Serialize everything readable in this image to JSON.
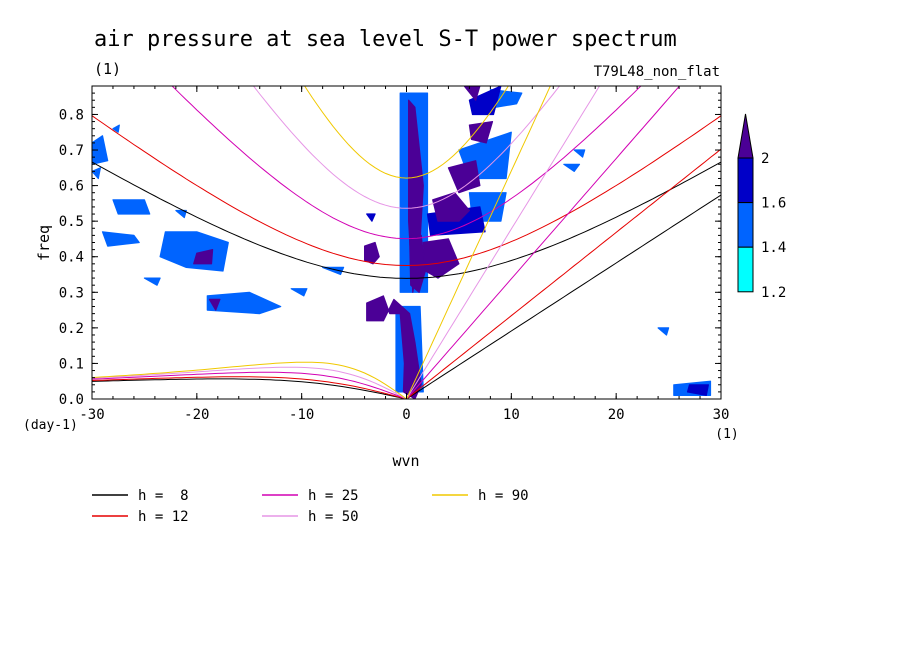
{
  "chart_data": {
    "type": "heatmap",
    "title": "air pressure at sea level S-T power spectrum",
    "subtitle_left": "(1)",
    "subtitle_right": "T79L48_non_flat",
    "xlabel": "wvn",
    "ylabel": "freq",
    "x_unit": "(1)",
    "y_unit": "(day-1)",
    "xlim": [
      -30,
      30
    ],
    "ylim": [
      0,
      0.88
    ],
    "x_ticks": [
      -30,
      -20,
      -10,
      0,
      10,
      20,
      30
    ],
    "x_tick_labels": [
      "-30",
      "-20",
      "-10",
      "0",
      "10",
      "20",
      "30"
    ],
    "y_ticks": [
      0.0,
      0.1,
      0.2,
      0.3,
      0.4,
      0.5,
      0.6,
      0.7,
      0.8
    ],
    "y_tick_labels": [
      "0.0",
      "0.1",
      "0.2",
      "0.3",
      "0.4",
      "0.5",
      "0.6",
      "0.7",
      "0.8"
    ],
    "colorbar": {
      "levels": [
        1.2,
        1.4,
        1.6,
        2
      ],
      "labels": [
        "1.2",
        "1.4",
        "1.6",
        "2"
      ],
      "colors": [
        "#00ffff",
        "#0064ff",
        "#0000c8",
        "#4b0096"
      ]
    },
    "dispersion_curves": [
      {
        "name": "h =  8",
        "h": 8,
        "color": "#000000"
      },
      {
        "name": "h = 12",
        "h": 12,
        "color": "#e60000"
      },
      {
        "name": "h = 25",
        "h": 25,
        "color": "#d200b4"
      },
      {
        "name": "h = 50",
        "h": 50,
        "color": "#e696e6"
      },
      {
        "name": "h = 90",
        "h": 90,
        "color": "#f0c800"
      }
    ],
    "contour_regions": [
      {
        "level": 2,
        "points": [
          [
            0.2,
            0.84
          ],
          [
            0.8,
            0.82
          ],
          [
            1.6,
            0.6
          ],
          [
            1.2,
            0.4
          ],
          [
            0.6,
            0.3
          ],
          [
            0.2,
            0.5
          ]
        ]
      },
      {
        "level": 2,
        "points": [
          [
            0.3,
            0.46
          ],
          [
            1.4,
            0.46
          ],
          [
            1.8,
            0.36
          ],
          [
            1.2,
            0.3
          ],
          [
            0.4,
            0.32
          ]
        ]
      },
      {
        "level": 2,
        "points": [
          [
            -3.8,
            0.27
          ],
          [
            -2.2,
            0.29
          ],
          [
            -1.6,
            0.24
          ],
          [
            -0.6,
            0.24
          ],
          [
            -0.2,
            0.1
          ],
          [
            -0.3,
            0.02
          ],
          [
            0.8,
            0.0
          ],
          [
            1.4,
            0.04
          ],
          [
            0.8,
            0.16
          ],
          [
            0.3,
            0.24
          ],
          [
            -1.2,
            0.28
          ],
          [
            -2.2,
            0.22
          ],
          [
            -3.8,
            0.22
          ]
        ]
      },
      {
        "level": 2,
        "points": [
          [
            -4,
            0.43
          ],
          [
            -3,
            0.44
          ],
          [
            -2.6,
            0.4
          ],
          [
            -3.2,
            0.38
          ],
          [
            -4,
            0.39
          ]
        ]
      },
      {
        "level": 2,
        "points": [
          [
            2.5,
            0.56
          ],
          [
            4.6,
            0.58
          ],
          [
            6,
            0.53
          ],
          [
            5,
            0.5
          ],
          [
            3,
            0.5
          ]
        ]
      },
      {
        "level": 2,
        "points": [
          [
            4,
            0.65
          ],
          [
            6.6,
            0.67
          ],
          [
            7,
            0.6
          ],
          [
            5,
            0.58
          ]
        ]
      },
      {
        "level": 2,
        "points": [
          [
            1.6,
            0.44
          ],
          [
            4,
            0.45
          ],
          [
            5,
            0.38
          ],
          [
            3,
            0.34
          ],
          [
            1.8,
            0.36
          ]
        ]
      },
      {
        "level": 2,
        "points": [
          [
            6,
            0.77
          ],
          [
            8.2,
            0.78
          ],
          [
            7.6,
            0.72
          ],
          [
            6.2,
            0.73
          ]
        ]
      },
      {
        "level": 2,
        "points": [
          [
            5.5,
            0.88
          ],
          [
            7,
            0.88
          ],
          [
            6.6,
            0.84
          ]
        ]
      },
      {
        "level": 2,
        "points": [
          [
            -20,
            0.41
          ],
          [
            -18.5,
            0.42
          ],
          [
            -18.6,
            0.38
          ],
          [
            -20.3,
            0.38
          ]
        ]
      },
      {
        "level": 2,
        "points": [
          [
            -18.8,
            0.28
          ],
          [
            -17.8,
            0.28
          ],
          [
            -18.2,
            0.25
          ]
        ]
      },
      {
        "level": 1.6,
        "points": [
          [
            2,
            0.52
          ],
          [
            7,
            0.54
          ],
          [
            7.5,
            0.47
          ],
          [
            2.3,
            0.46
          ]
        ]
      },
      {
        "level": 1.6,
        "points": [
          [
            6,
            0.84
          ],
          [
            9,
            0.88
          ],
          [
            8.3,
            0.8
          ],
          [
            6.3,
            0.8
          ]
        ]
      },
      {
        "level": 1.6,
        "points": [
          [
            27,
            0.04
          ],
          [
            28.8,
            0.04
          ],
          [
            28.6,
            0.01
          ],
          [
            26.8,
            0.02
          ]
        ]
      },
      {
        "level": 1.6,
        "points": [
          [
            -3.8,
            0.52
          ],
          [
            -3,
            0.52
          ],
          [
            -3.3,
            0.5
          ]
        ]
      },
      {
        "level": 1.4,
        "points": [
          [
            -28,
            0.56
          ],
          [
            -25,
            0.56
          ],
          [
            -24.5,
            0.52
          ],
          [
            -27.5,
            0.52
          ]
        ]
      },
      {
        "level": 1.4,
        "points": [
          [
            -23,
            0.47
          ],
          [
            -20,
            0.47
          ],
          [
            -17,
            0.44
          ],
          [
            -17.5,
            0.36
          ],
          [
            -21,
            0.37
          ],
          [
            -23.5,
            0.4
          ]
        ]
      },
      {
        "level": 1.4,
        "points": [
          [
            -29,
            0.47
          ],
          [
            -26,
            0.46
          ],
          [
            -25.5,
            0.44
          ],
          [
            -28.5,
            0.43
          ]
        ]
      },
      {
        "level": 1.4,
        "points": [
          [
            -19,
            0.29
          ],
          [
            -15,
            0.3
          ],
          [
            -12,
            0.26
          ],
          [
            -14,
            0.24
          ],
          [
            -19,
            0.25
          ]
        ]
      },
      {
        "level": 1.4,
        "points": [
          [
            -30,
            0.72
          ],
          [
            -29,
            0.74
          ],
          [
            -28.5,
            0.67
          ],
          [
            -30,
            0.66
          ]
        ]
      },
      {
        "level": 1.4,
        "points": [
          [
            -28,
            0.76
          ],
          [
            -27.4,
            0.77
          ],
          [
            -27.5,
            0.75
          ]
        ]
      },
      {
        "level": 1.4,
        "points": [
          [
            5,
            0.7
          ],
          [
            10,
            0.75
          ],
          [
            9.5,
            0.62
          ],
          [
            6,
            0.62
          ]
        ]
      },
      {
        "level": 1.4,
        "points": [
          [
            6,
            0.58
          ],
          [
            9.5,
            0.58
          ],
          [
            9,
            0.5
          ],
          [
            6.3,
            0.5
          ]
        ]
      },
      {
        "level": 1.4,
        "points": [
          [
            8,
            0.87
          ],
          [
            11,
            0.86
          ],
          [
            10.5,
            0.83
          ],
          [
            8.5,
            0.82
          ]
        ]
      },
      {
        "level": 1.4,
        "points": [
          [
            15,
            0.66
          ],
          [
            16.5,
            0.66
          ],
          [
            16,
            0.64
          ]
        ]
      },
      {
        "level": 1.4,
        "points": [
          [
            -8,
            0.37
          ],
          [
            -6,
            0.37
          ],
          [
            -6.3,
            0.35
          ]
        ]
      },
      {
        "level": 1.4,
        "points": [
          [
            -11,
            0.31
          ],
          [
            -9.5,
            0.31
          ],
          [
            -9.8,
            0.29
          ]
        ]
      },
      {
        "level": 1.4,
        "points": [
          [
            -25,
            0.34
          ],
          [
            -23.5,
            0.34
          ],
          [
            -23.8,
            0.32
          ]
        ]
      },
      {
        "level": 1.4,
        "points": [
          [
            25.5,
            0.04
          ],
          [
            29,
            0.05
          ],
          [
            29,
            0.01
          ],
          [
            25.5,
            0.01
          ]
        ]
      },
      {
        "level": 1.4,
        "points": [
          [
            24,
            0.2
          ],
          [
            25,
            0.2
          ],
          [
            24.8,
            0.18
          ]
        ]
      },
      {
        "level": 1.4,
        "points": [
          [
            16,
            0.7
          ],
          [
            17,
            0.7
          ],
          [
            16.8,
            0.68
          ]
        ]
      },
      {
        "level": 1.4,
        "points": [
          [
            -30,
            0.64
          ],
          [
            -29.2,
            0.65
          ],
          [
            -29.4,
            0.62
          ]
        ]
      },
      {
        "level": 1.4,
        "points": [
          [
            -22,
            0.53
          ],
          [
            -21,
            0.53
          ],
          [
            -21.2,
            0.51
          ]
        ]
      },
      {
        "level": 1.4,
        "points": [
          [
            -1,
            0.26
          ],
          [
            1.3,
            0.26
          ],
          [
            1.6,
            0.02
          ],
          [
            -1,
            0.02
          ]
        ]
      },
      {
        "level": 1.4,
        "points": [
          [
            -0.6,
            0.86
          ],
          [
            2,
            0.86
          ],
          [
            2,
            0.3
          ],
          [
            -0.6,
            0.3
          ]
        ]
      }
    ]
  },
  "legend_entries": [
    {
      "label": "h =  8",
      "color": "#000000"
    },
    {
      "label": "h = 12",
      "color": "#e60000"
    },
    {
      "label": "h = 25",
      "color": "#d200b4"
    },
    {
      "label": "h = 50",
      "color": "#e696e6"
    },
    {
      "label": "h = 90",
      "color": "#f0c800"
    }
  ]
}
